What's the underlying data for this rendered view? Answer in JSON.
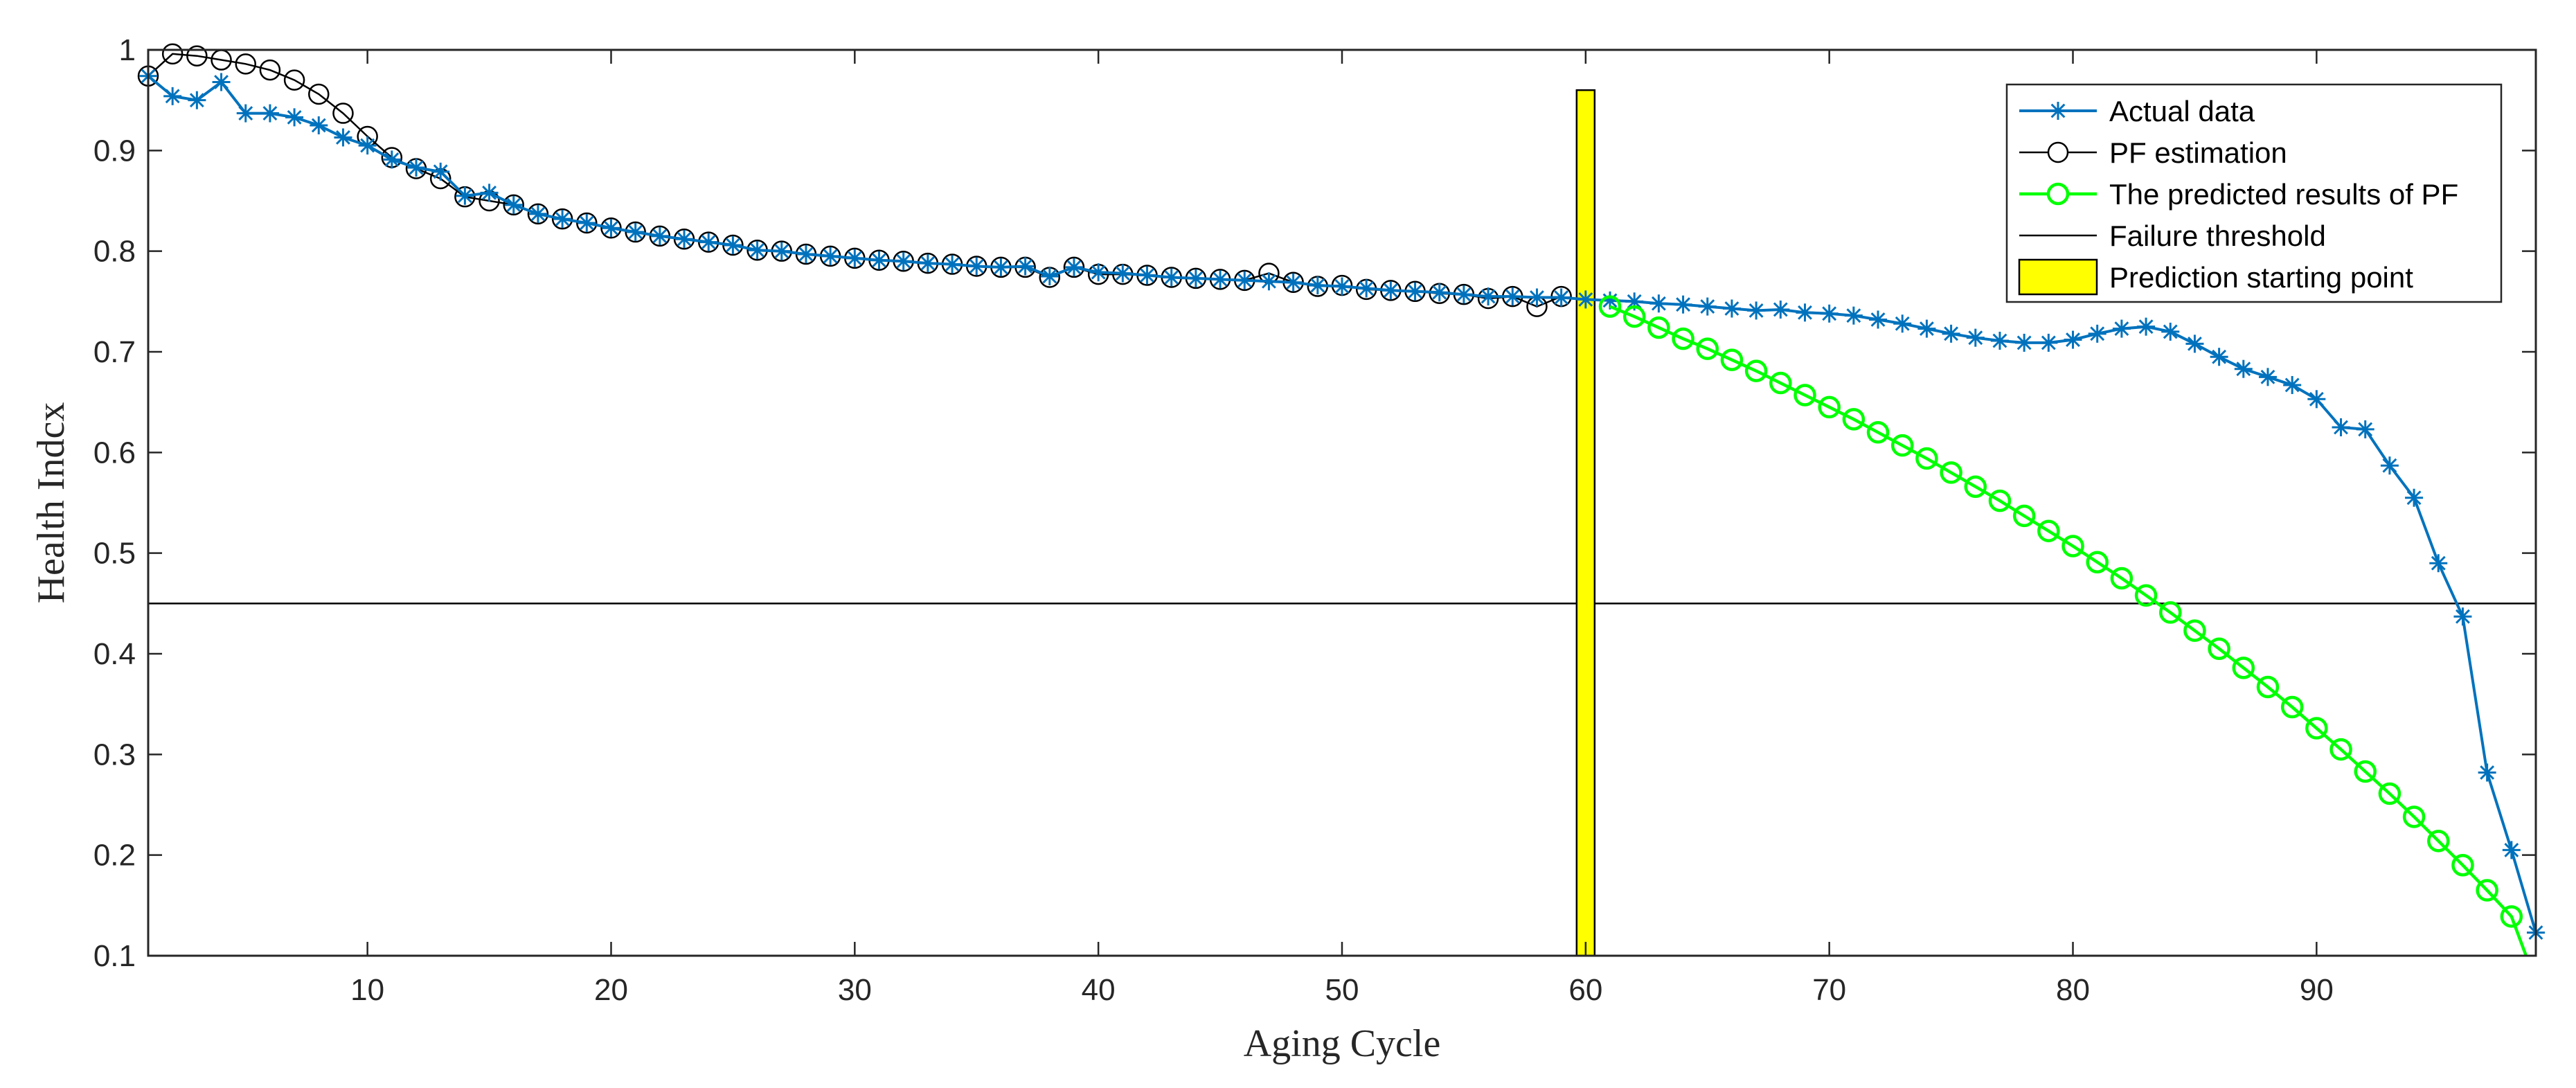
{
  "chart_data": {
    "type": "line",
    "title": "",
    "xlabel": "Aging Cycle",
    "ylabel": "Health Indcx",
    "xlim": [
      1,
      99
    ],
    "ylim": [
      0.1,
      1.0
    ],
    "xticks": [
      10,
      20,
      30,
      40,
      50,
      60,
      70,
      80,
      90
    ],
    "xtick_labels": [
      "10",
      "20",
      "30",
      "40",
      "50",
      "60",
      "70",
      "80",
      "90"
    ],
    "yticks": [
      0.1,
      0.2,
      0.3,
      0.4,
      0.5,
      0.6,
      0.7,
      0.8,
      0.9,
      1.0
    ],
    "ytick_labels": [
      "0.1",
      "0.2",
      "0.3",
      "0.4",
      "0.5",
      "0.6",
      "0.7",
      "0.8",
      "0.9",
      "1"
    ],
    "grid": false,
    "legend_position": "top-right",
    "legend": [
      "Actual data",
      "PF estimation",
      "The predicted results of PF",
      "Failure threshold",
      "Prediction starting point"
    ],
    "colors": {
      "actual": "#0072BD",
      "pf_estimation": "#000000",
      "predicted": "#00FF00",
      "threshold": "#000000",
      "start_bar": "#FFFF00"
    },
    "series": [
      {
        "name": "Actual data",
        "marker": "asterisk",
        "x": [
          1,
          2,
          3,
          4,
          5,
          6,
          7,
          8,
          9,
          10,
          11,
          12,
          13,
          14,
          15,
          16,
          17,
          18,
          19,
          20,
          21,
          22,
          23,
          24,
          25,
          26,
          27,
          28,
          29,
          30,
          31,
          32,
          33,
          34,
          35,
          36,
          37,
          38,
          39,
          40,
          41,
          42,
          43,
          44,
          45,
          46,
          47,
          48,
          49,
          50,
          51,
          52,
          53,
          54,
          55,
          56,
          57,
          58,
          59,
          60,
          61,
          62,
          63,
          64,
          65,
          66,
          67,
          68,
          69,
          70,
          71,
          72,
          73,
          74,
          75,
          76,
          77,
          78,
          79,
          80,
          81,
          82,
          83,
          84,
          85,
          86,
          87,
          88,
          89,
          90,
          91,
          92,
          93,
          94,
          95,
          96,
          97,
          98,
          99
        ],
        "values": [
          0.974,
          0.954,
          0.95,
          0.968,
          0.937,
          0.937,
          0.933,
          0.925,
          0.913,
          0.905,
          0.891,
          0.883,
          0.879,
          0.855,
          0.858,
          0.846,
          0.837,
          0.832,
          0.828,
          0.823,
          0.819,
          0.815,
          0.812,
          0.809,
          0.806,
          0.801,
          0.8,
          0.797,
          0.795,
          0.793,
          0.791,
          0.79,
          0.788,
          0.787,
          0.785,
          0.784,
          0.785,
          0.775,
          0.784,
          0.779,
          0.778,
          0.776,
          0.774,
          0.773,
          0.772,
          0.771,
          0.77,
          0.769,
          0.766,
          0.765,
          0.763,
          0.761,
          0.76,
          0.759,
          0.757,
          0.755,
          0.755,
          0.754,
          0.754,
          0.752,
          0.751,
          0.75,
          0.748,
          0.747,
          0.745,
          0.743,
          0.741,
          0.742,
          0.739,
          0.738,
          0.736,
          0.732,
          0.728,
          0.723,
          0.718,
          0.714,
          0.711,
          0.709,
          0.709,
          0.712,
          0.718,
          0.723,
          0.725,
          0.72,
          0.708,
          0.695,
          0.683,
          0.675,
          0.667,
          0.653,
          0.625,
          0.623,
          0.587,
          0.555,
          0.49,
          0.437,
          0.282,
          0.205,
          0.123
        ]
      },
      {
        "name": "PF estimation",
        "marker": "circle",
        "x": [
          1,
          2,
          3,
          4,
          5,
          6,
          7,
          8,
          9,
          10,
          11,
          12,
          13,
          14,
          15,
          16,
          17,
          18,
          19,
          20,
          21,
          22,
          23,
          24,
          25,
          26,
          27,
          28,
          29,
          30,
          31,
          32,
          33,
          34,
          35,
          36,
          37,
          38,
          39,
          40,
          41,
          42,
          43,
          44,
          45,
          46,
          47,
          48,
          49,
          50,
          51,
          52,
          53,
          54,
          55,
          56,
          57,
          58,
          59
        ],
        "values": [
          0.974,
          0.996,
          0.994,
          0.99,
          0.986,
          0.98,
          0.97,
          0.956,
          0.937,
          0.914,
          0.893,
          0.882,
          0.872,
          0.854,
          0.85,
          0.846,
          0.837,
          0.832,
          0.828,
          0.823,
          0.819,
          0.815,
          0.812,
          0.809,
          0.806,
          0.801,
          0.8,
          0.797,
          0.795,
          0.793,
          0.791,
          0.79,
          0.788,
          0.787,
          0.785,
          0.784,
          0.784,
          0.774,
          0.784,
          0.777,
          0.777,
          0.776,
          0.774,
          0.773,
          0.772,
          0.771,
          0.778,
          0.769,
          0.765,
          0.766,
          0.762,
          0.761,
          0.76,
          0.758,
          0.757,
          0.753,
          0.755,
          0.745,
          0.755
        ]
      },
      {
        "name": "The predicted results of PF",
        "marker": "circle",
        "x": [
          61,
          62,
          63,
          64,
          65,
          66,
          67,
          68,
          69,
          70,
          71,
          72,
          73,
          74,
          75,
          76,
          77,
          78,
          79,
          80,
          81,
          82,
          83,
          84,
          85,
          86,
          87,
          88,
          89,
          90,
          91,
          92,
          93,
          94,
          95,
          96,
          97,
          98
        ],
        "values": [
          0.745,
          0.735,
          0.724,
          0.713,
          0.703,
          0.692,
          0.681,
          0.669,
          0.657,
          0.645,
          0.633,
          0.62,
          0.607,
          0.594,
          0.58,
          0.566,
          0.552,
          0.537,
          0.522,
          0.507,
          0.491,
          0.475,
          0.458,
          0.441,
          0.423,
          0.405,
          0.386,
          0.367,
          0.347,
          0.326,
          0.305,
          0.283,
          0.261,
          0.238,
          0.214,
          0.19,
          0.165,
          0.139
        ],
        "tail_to": [
          98.6,
          0.1
        ]
      },
      {
        "name": "Failure threshold",
        "value": 0.45
      },
      {
        "name": "Prediction starting point",
        "x": 60,
        "y_range": [
          0.1,
          0.96
        ]
      }
    ]
  }
}
